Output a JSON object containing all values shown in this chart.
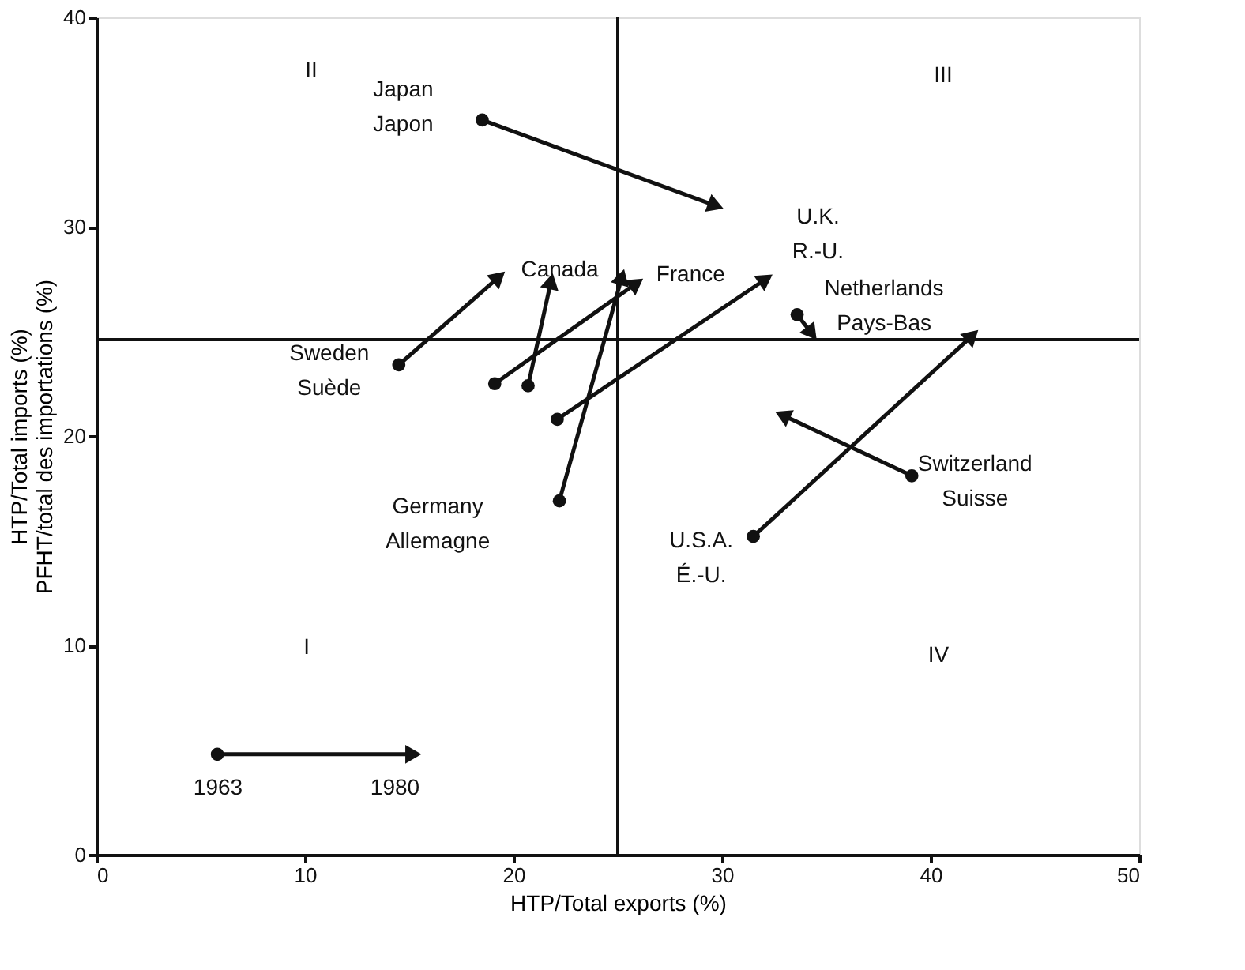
{
  "chart_data": {
    "type": "line",
    "xlabel": "HTP/Total exports (%)",
    "ylabel": "HTP/Total imports (%)\nPFHT/total des importations (%)",
    "xlim": [
      0,
      50
    ],
    "xticks": [
      0,
      10,
      20,
      30,
      40,
      50
    ],
    "ylim": [
      0,
      40
    ],
    "yticks": [
      0,
      10,
      20,
      30,
      40
    ],
    "grid": false,
    "marker": "circle",
    "line_style": "solid",
    "series": [
      {
        "name": "Japan\nJapon",
        "color": "#111111",
        "x": [
          18.5,
          29.7
        ],
        "values": [
          35.1,
          31.0
        ]
      },
      {
        "name": "Sweden\nSuède",
        "color": "#111111",
        "x": [
          14.5,
          19.3
        ],
        "values": [
          23.4,
          27.6
        ]
      },
      {
        "name": "Canada",
        "color": "#111111",
        "x": [
          20.7,
          21.8
        ],
        "values": [
          22.4,
          27.4
        ]
      },
      {
        "name": "France",
        "color": "#111111",
        "x": [
          19.1,
          25.9
        ],
        "values": [
          22.5,
          27.3
        ]
      },
      {
        "name": "Germany\nAllemagne",
        "color": "#111111",
        "x": [
          22.2,
          25.2
        ],
        "values": [
          16.9,
          27.6
        ]
      },
      {
        "name": "U.K.\nR.-U.",
        "color": "#111111",
        "x": [
          22.1,
          32.1
        ],
        "values": [
          20.8,
          27.5
        ]
      },
      {
        "name": "Netherlands\nPays-Bas",
        "color": "#111111",
        "x": [
          33.6,
          34.3
        ],
        "values": [
          25.8,
          24.9
        ]
      },
      {
        "name": "Switzerland\nSuisse",
        "color": "#111111",
        "x": [
          39.1,
          32.9
        ],
        "values": [
          18.1,
          21.0
        ]
      },
      {
        "name": "U.S.A.\nÉ.-U.",
        "color": "#111111",
        "x": [
          31.5,
          42.0
        ],
        "values": [
          15.2,
          24.8
        ]
      },
      {
        "color": "#111111",
        "x": [
          5.8,
          15.2
        ],
        "values": [
          4.8,
          4.8
        ]
      }
    ],
    "ref_lines": [
      {
        "axis": "x",
        "value": 25,
        "color": "#111111"
      },
      {
        "axis": "y",
        "value": 24.6,
        "color": "#111111"
      }
    ],
    "annotations": [
      "I",
      "II",
      "III",
      "IV",
      "1963",
      "1980"
    ]
  }
}
